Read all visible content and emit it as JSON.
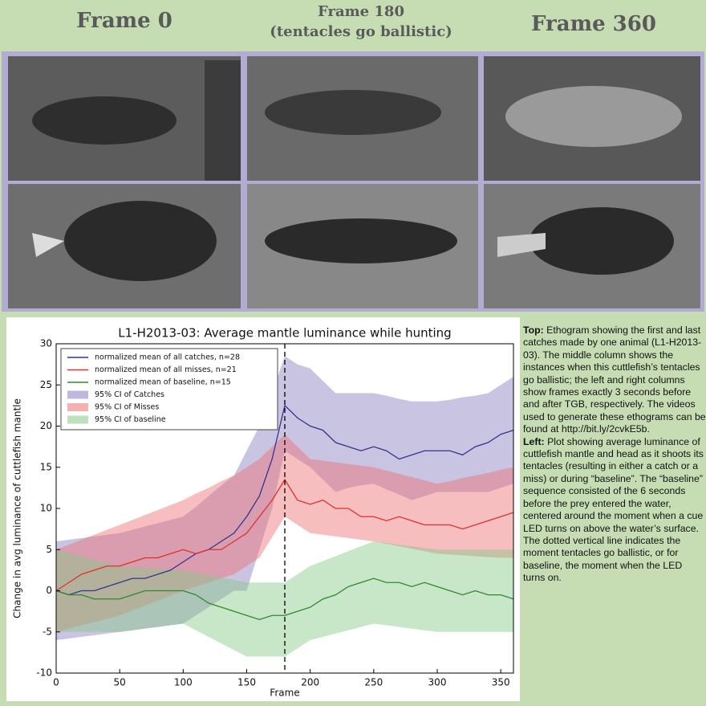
{
  "header": {
    "frames": [
      {
        "lines": [
          "Frame 0"
        ]
      },
      {
        "lines": [
          "Frame 180",
          "(tentacles go ballistic)"
        ]
      },
      {
        "lines": [
          "Frame 360"
        ]
      }
    ]
  },
  "chart_data": {
    "type": "line",
    "title": "L1-H2013-03: Average mantle luminance while hunting",
    "x_label": "Frame",
    "y_label": "Change in avg luminance of cuttlefish mantle",
    "xlim": [
      0,
      360
    ],
    "ylim": [
      -10,
      30
    ],
    "xticks": [
      0,
      50,
      100,
      150,
      200,
      250,
      300,
      350
    ],
    "yticks": [
      -10,
      -5,
      0,
      5,
      10,
      15,
      20,
      25,
      30
    ],
    "grid": false,
    "legend": "upper left",
    "vline": 180,
    "x": [
      0,
      10,
      20,
      30,
      40,
      50,
      60,
      70,
      80,
      90,
      100,
      110,
      120,
      130,
      140,
      150,
      160,
      170,
      180,
      190,
      200,
      210,
      220,
      230,
      240,
      250,
      260,
      270,
      280,
      290,
      300,
      310,
      320,
      330,
      340,
      350,
      360
    ],
    "series": [
      {
        "name": "normalized mean of all catches, n=28",
        "color": "#34348f",
        "values": [
          0,
          -0.5,
          0,
          0,
          0.5,
          1,
          1.5,
          1.5,
          2,
          2.5,
          3.5,
          4.5,
          5,
          6,
          7,
          9,
          11.5,
          16,
          22.5,
          21,
          20,
          19.5,
          18,
          17.5,
          17,
          17.5,
          17,
          16,
          16.5,
          17,
          17,
          17,
          16.5,
          17.5,
          18,
          19,
          19.5
        ]
      },
      {
        "name": "normalized mean of all misses, n=21",
        "color": "#e0302a",
        "values": [
          0,
          1,
          2,
          2.5,
          3,
          3,
          3.5,
          4,
          4,
          4.5,
          5,
          4.5,
          5,
          5,
          6,
          7,
          9,
          11,
          13.5,
          11,
          10.5,
          11,
          10,
          10,
          9,
          9,
          8.5,
          9,
          8.5,
          8,
          8,
          8,
          7.5,
          8,
          8.5,
          9,
          9.5
        ]
      },
      {
        "name": "normalized mean of baseline, n=15",
        "color": "#2e8a2e",
        "values": [
          0,
          -0.5,
          -0.5,
          -1,
          -1,
          -1,
          -0.5,
          0,
          0,
          0,
          0,
          -0.5,
          -1.5,
          -2,
          -2.5,
          -3,
          -3.5,
          -3,
          -3,
          -2.5,
          -2,
          -1,
          -0.5,
          0.5,
          1,
          1.5,
          1,
          1,
          0.5,
          1,
          0.5,
          0,
          -0.5,
          0,
          -0.5,
          -0.5,
          -1
        ]
      }
    ],
    "bands": [
      {
        "name": "95% CI of Catches",
        "color": "#8a7cc0",
        "lower": [
          -6,
          -5.8,
          -5.6,
          -5.4,
          -5.2,
          -5,
          -4.8,
          -4.6,
          -4.4,
          -4.2,
          -4,
          -3,
          -2,
          -1,
          0,
          0,
          5,
          10,
          17,
          16,
          15,
          13.5,
          12,
          12.5,
          12.8,
          13,
          12.3,
          11.7,
          11,
          11.5,
          12,
          12,
          12,
          12,
          12,
          12.5,
          13
        ],
        "upper": [
          6,
          6.2,
          6.4,
          6.6,
          6.8,
          7,
          7.4,
          7.8,
          8.2,
          8.6,
          9,
          10.2,
          11.5,
          12.8,
          14,
          17,
          20,
          24,
          28.5,
          27.5,
          27,
          25.5,
          24,
          24,
          24,
          24,
          23.7,
          23.3,
          23,
          23,
          23,
          23.2,
          23.5,
          23.7,
          24,
          25,
          26
        ]
      },
      {
        "name": "95% CI of Misses",
        "color": "#ec6f6f",
        "lower": [
          -5,
          -4.6,
          -4.2,
          -3.8,
          -3.4,
          -3,
          -2.4,
          -1.8,
          -1.2,
          -0.6,
          0,
          0.5,
          1,
          1.5,
          2,
          3,
          4,
          6.5,
          9,
          8,
          7,
          6.8,
          6.6,
          6.4,
          6.2,
          6,
          5.7,
          5.4,
          5.1,
          4.8,
          4.5,
          4.4,
          4.3,
          4.2,
          4.1,
          4,
          4
        ],
        "upper": [
          5,
          5.6,
          6.2,
          6.8,
          7.4,
          8,
          8.6,
          9.2,
          9.8,
          10.4,
          11,
          11.8,
          12.5,
          13.3,
          14,
          15,
          16,
          17.5,
          19,
          17.5,
          16,
          15.8,
          15.6,
          15.4,
          15.2,
          15,
          14.6,
          14.2,
          13.8,
          13.4,
          13,
          13.3,
          13.7,
          14,
          14.3,
          14.7,
          15
        ]
      },
      {
        "name": "95% CI of baseline",
        "color": "#86c886",
        "lower": [
          -5,
          -5,
          -5,
          -5,
          -5,
          -5,
          -4.8,
          -4.6,
          -4.4,
          -4.2,
          -4,
          -4.8,
          -5.6,
          -6.4,
          -7.2,
          -8,
          -8,
          -8,
          -8,
          -7,
          -6,
          -5.6,
          -5.2,
          -4.8,
          -4.4,
          -4,
          -4.2,
          -4.4,
          -4.6,
          -4.8,
          -5,
          -5,
          -5,
          -5,
          -5,
          -5,
          -5
        ],
        "upper": [
          5,
          4.6,
          4.2,
          3.8,
          3.4,
          3,
          2.9,
          2.8,
          2.7,
          2.6,
          2.5,
          2.2,
          1.9,
          1.6,
          1.3,
          1,
          1,
          1,
          1,
          2,
          3,
          3.6,
          4.2,
          4.8,
          5.4,
          6,
          5.8,
          5.6,
          5.4,
          5.2,
          5,
          5,
          5,
          5,
          5,
          5,
          5
        ]
      }
    ]
  },
  "caption": [
    {
      "label": "Top:",
      "text": "Ethogram showing the first and last catches made by one animal (L1-H2013-03). The middle column shows the instances when this cuttlefish’s tentacles go ballistic; the left and right columns show frames exactly 3 seconds before and after TGB, respectively. The videos used to generate these ethograms can be found at http://bit.ly/2cvkE5b."
    },
    {
      "label": "Left:",
      "text": "Plot showing average luminance of cuttlefish mantle and head as it shoots its tentacles (resulting in either a catch or a miss) or during “baseline”. The “baseline” sequence consisted of the 6 seconds before the prey entered the water, centered around the moment when a cue LED turns on above the water’s surface. The dotted vertical line indicates the moment tentacles go ballistic, or for baseline, the moment when the LED turns on."
    }
  ]
}
